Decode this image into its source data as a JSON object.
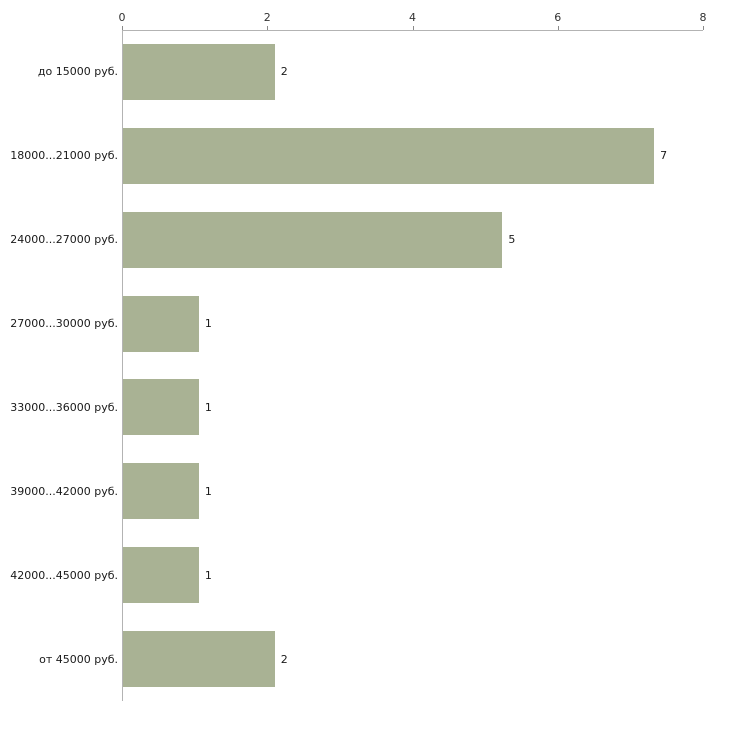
{
  "chart_data": {
    "type": "bar",
    "orientation": "horizontal",
    "title": "",
    "xlabel": "",
    "ylabel": "",
    "categories": [
      "до 15000 руб.",
      "18000...21000 руб.",
      "24000...27000 руб.",
      "27000...30000 руб.",
      "33000...36000 руб.",
      "39000...42000 руб.",
      "42000...45000 руб.",
      "от 45000 руб."
    ],
    "values": [
      2,
      7,
      5,
      1,
      1,
      1,
      1,
      2
    ],
    "value_labels": [
      "2",
      "7",
      "5",
      "1",
      "1",
      "1",
      "1",
      "2"
    ],
    "xlim": [
      0,
      8
    ],
    "xticks": [
      0,
      2,
      4,
      6,
      8
    ],
    "xtick_labels": [
      "0",
      "2",
      "4",
      "6",
      "8"
    ],
    "grid": false,
    "legend": false,
    "axis_position": "top-left",
    "colors": {
      "bar": "#a9b294",
      "axis": "#b3b3b3",
      "tick_mark": "#8a8a8a",
      "text": "#1a1a1a",
      "background": "#ffffff"
    }
  }
}
